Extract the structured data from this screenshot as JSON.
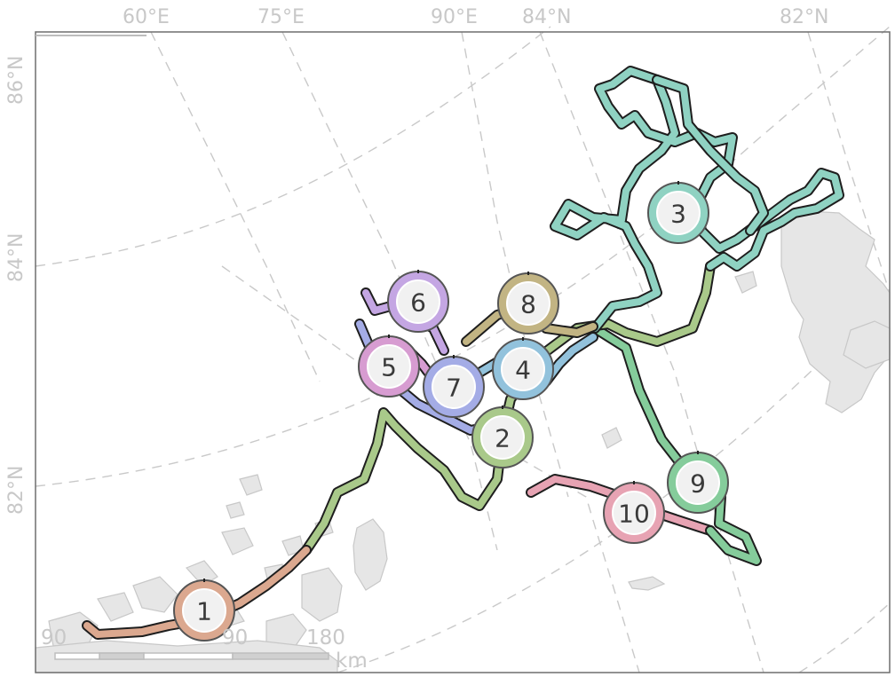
{
  "map": {
    "top_labels": [
      {
        "text": "60°E"
      },
      {
        "text": "75°E"
      },
      {
        "text": "90°E"
      },
      {
        "text": "84°N"
      },
      {
        "text": "82°N"
      }
    ],
    "left_labels": [
      {
        "text": "86°N"
      },
      {
        "text": "84°N"
      },
      {
        "text": "82°N"
      }
    ],
    "scale_bar": {
      "labels": [
        "90",
        "90",
        "180"
      ],
      "unit": "km"
    },
    "markers": [
      {
        "num": "1",
        "color": "#dba88f"
      },
      {
        "num": "2",
        "color": "#a9c98a"
      },
      {
        "num": "3",
        "color": "#8fd2c2"
      },
      {
        "num": "4",
        "color": "#92c2dc"
      },
      {
        "num": "5",
        "color": "#d79cd1"
      },
      {
        "num": "6",
        "color": "#c4a6e3"
      },
      {
        "num": "7",
        "color": "#a4ace6"
      },
      {
        "num": "8",
        "color": "#c2b483"
      },
      {
        "num": "9",
        "color": "#85cc9b"
      },
      {
        "num": "10",
        "color": "#e7a3b3"
      }
    ],
    "colors": {
      "land": "#e6e6e6",
      "graticule": "#c9c9c9",
      "frame": "#6e6e6e",
      "label": "#c8c8c8"
    }
  }
}
